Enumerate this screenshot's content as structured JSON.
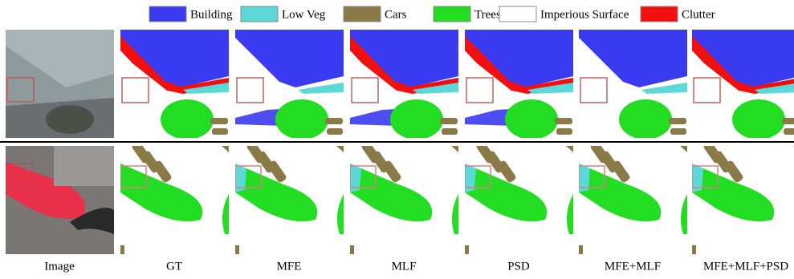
{
  "legend": {
    "items": [
      {
        "label": "Building",
        "color": "#3a3af0"
      },
      {
        "label": "Low Veg",
        "color": "#5cd8d8"
      },
      {
        "label": "Cars",
        "color": "#8a7a48"
      },
      {
        "label": "Trees",
        "color": "#22dd22"
      },
      {
        "label": "Imperious Surface",
        "color": "#ffffff"
      },
      {
        "label": "Clutter",
        "color": "#f01010"
      }
    ]
  },
  "columns": [
    "Image",
    "GT",
    "MFE",
    "MLF",
    "PSD",
    "MFE+MLF",
    "MFE+MLF+PSD"
  ]
}
